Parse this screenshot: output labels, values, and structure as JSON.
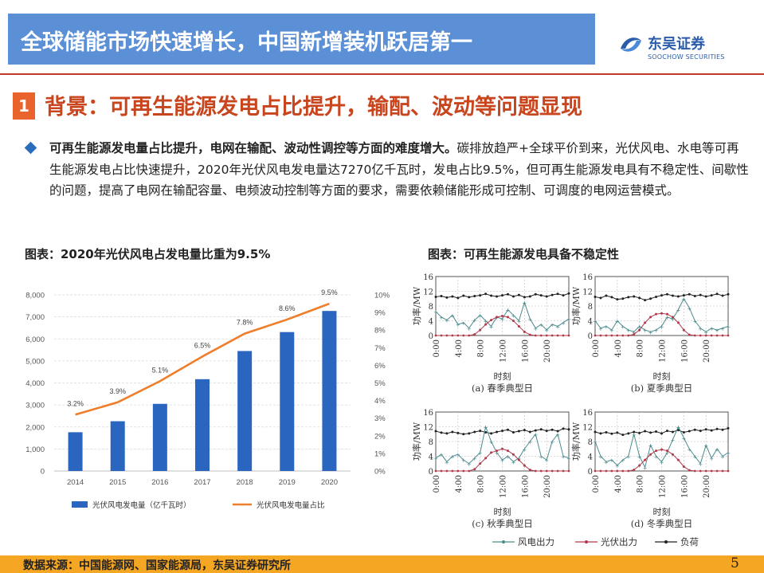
{
  "header": {
    "title": "全球储能市场快速增长，中国新增装机跃居第一"
  },
  "logo": {
    "name_cn": "东吴证券",
    "name_en": "SOOCHOW SECURITIES"
  },
  "section": {
    "number": "1",
    "title": "背景：可再生能源发电占比提升，输配、波动等问题显现"
  },
  "bullet": {
    "bold": "可再生能源发电量占比提升，电网在输配、波动性调控等方面的难度增大。",
    "rest": "碳排放趋严+全球平价到来，光伏风电、水电等可再生能源发电占比快速提升，2020年光伏风电发电量达7270亿千瓦时，发电占比9.5%，但可再生能源发电具有不稳定性、间歇性的问题，提高了电网在输配容量、电频波动控制等方面的要求，需要依赖储能形成可控制、可调度的电网运营模式。"
  },
  "captions": {
    "left": "图表：2020年光伏风电占发电量比重为9.5%",
    "right": "图表：可再生能源发电具备不稳定性"
  },
  "chart_data": [
    {
      "type": "bar",
      "categories": [
        "2014",
        "2015",
        "2016",
        "2017",
        "2018",
        "2019",
        "2020"
      ],
      "series": [
        {
          "name": "光伏风电发电量（亿千瓦时）",
          "type": "bar",
          "axis": "left",
          "color": "#2a66c0",
          "values": [
            1760,
            2260,
            3050,
            4170,
            5450,
            6310,
            7270
          ]
        },
        {
          "name": "光伏风电发电量占比",
          "type": "line",
          "axis": "right",
          "color": "#ef7d2a",
          "values": [
            3.2,
            3.9,
            5.1,
            6.5,
            7.8,
            8.6,
            9.5
          ],
          "labels": [
            "3.2%",
            "3.9%",
            "5.1%",
            "6.5%",
            "7.8%",
            "8.6%",
            "9.5%"
          ]
        }
      ],
      "ylim_left": [
        0,
        8000
      ],
      "yticks_left": [
        "0",
        "1,000",
        "2,000",
        "3,000",
        "4,000",
        "5,000",
        "6,000",
        "7,000",
        "8,000"
      ],
      "ylim_right": [
        0,
        10
      ],
      "yticks_right": [
        "0%",
        "1%",
        "2%",
        "3%",
        "4%",
        "5%",
        "6%",
        "7%",
        "8%",
        "9%",
        "10%"
      ],
      "grid": true,
      "legend": "bottom"
    },
    {
      "type": "line",
      "panels": [
        {
          "caption": "(a) 春季典型日",
          "wind": [
            6.5,
            5,
            4.2,
            5.5,
            3,
            3.5,
            2,
            4.2,
            5.5,
            4,
            2.5,
            5,
            4.5,
            7,
            5.5,
            4,
            9,
            4.5,
            2,
            3,
            1.5,
            3,
            2.5,
            3.5,
            4.5
          ],
          "pv": [
            0,
            0,
            0,
            0,
            0,
            0,
            0,
            0.3,
            1.5,
            3,
            4.2,
            5,
            5.3,
            5,
            4,
            2.5,
            1,
            0.2,
            0,
            0,
            0,
            0,
            0,
            0,
            0
          ],
          "load": [
            10.5,
            10.7,
            10.3,
            10.6,
            10.2,
            10.8,
            10.4,
            10.7,
            10.9,
            11.3,
            10.8,
            10.6,
            10.9,
            11.2,
            10.6,
            11,
            10.4,
            10.6,
            11.2,
            10.9,
            10.6,
            11,
            11.3,
            10.9,
            11.4
          ]
        },
        {
          "caption": "(b) 夏季典型日",
          "wind": [
            4,
            2,
            2.5,
            1.5,
            4,
            2.5,
            1.5,
            1,
            2.5,
            1.5,
            1,
            1.5,
            2.5,
            5,
            4.5,
            7,
            10,
            7.5,
            4,
            2,
            1,
            2,
            1.5,
            2,
            2.5
          ],
          "pv": [
            0,
            0,
            0,
            0,
            0,
            0,
            0,
            0.3,
            1.5,
            3.5,
            5,
            5.8,
            6,
            5.8,
            5,
            3.5,
            1.5,
            0.2,
            0,
            0,
            0,
            0,
            0,
            0,
            0
          ],
          "load": [
            10.5,
            10.2,
            10.8,
            10.4,
            9.8,
            10,
            10.4,
            10.6,
            10.2,
            9.6,
            10,
            10.5,
            10.9,
            11.2,
            10.8,
            10.6,
            10.9,
            11.2,
            10.7,
            11,
            10.6,
            10.9,
            11.3,
            10.8,
            11.2
          ]
        },
        {
          "caption": "(c) 秋季典型日",
          "wind": [
            3.5,
            4.5,
            2.5,
            4,
            4.5,
            3,
            2,
            3.5,
            5,
            12,
            8,
            5,
            3,
            4,
            2.5,
            3.5,
            6,
            8,
            10,
            4,
            3,
            8,
            10,
            4,
            3.5
          ],
          "pv": [
            0,
            0,
            0,
            0,
            0,
            0,
            0,
            0.5,
            2,
            3.5,
            5,
            5.5,
            6,
            5.5,
            4.5,
            3,
            1.5,
            0.3,
            0,
            0,
            0,
            0,
            0,
            0,
            0
          ],
          "load": [
            10.8,
            10.4,
            10.2,
            10.6,
            10.3,
            10,
            10.2,
            10.6,
            10.9,
            10.5,
            10.2,
            10.6,
            10.9,
            11.2,
            10.5,
            10.8,
            11.1,
            10.6,
            11,
            11.3,
            10.9,
            11.2,
            10.8,
            11.5,
            11.3
          ]
        },
        {
          "caption": "(d) 冬季典型日",
          "wind": [
            8,
            4,
            2.5,
            3,
            1.5,
            3,
            4,
            10,
            4,
            1,
            7,
            4,
            2.5,
            5,
            8.5,
            12,
            9,
            6,
            4,
            2,
            7,
            3.5,
            6,
            4,
            5
          ],
          "pv": [
            0,
            0,
            0,
            0,
            0,
            0,
            0,
            0.3,
            1.5,
            3,
            4.5,
            5.5,
            5.8,
            5.5,
            4.5,
            3,
            1.2,
            0.2,
            0,
            0,
            0,
            0,
            0,
            0,
            0
          ],
          "load": [
            10.6,
            10.2,
            10.5,
            10.1,
            10.4,
            9.8,
            10.2,
            10.6,
            10.3,
            10.8,
            10.4,
            10.7,
            10.2,
            10.9,
            10.6,
            11.1,
            10.5,
            10.8,
            11.2,
            10.9,
            11.3,
            11,
            11.4,
            11.2,
            11.6
          ]
        }
      ],
      "ylabel": "功率/MW",
      "xlabel": "时刻",
      "ylim": [
        0,
        16
      ],
      "yticks": [
        "0",
        "4",
        "8",
        "12",
        "16"
      ],
      "xticks": [
        "0:00",
        "4:00",
        "8:00",
        "12:00",
        "16:00",
        "20:00"
      ],
      "legend": [
        "风电出力",
        "光伏出力",
        "负荷"
      ],
      "colors": {
        "wind": "#4a8a8c",
        "pv": "#b03a4a",
        "load": "#222222"
      }
    }
  ],
  "footer": {
    "source": "数据来源：中国能源网、国家能源局，东吴证券研究所",
    "page": "5"
  }
}
